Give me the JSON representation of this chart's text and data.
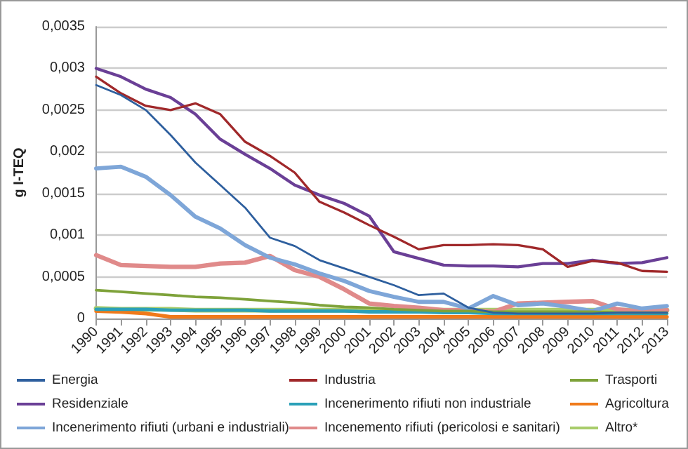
{
  "chart_data": {
    "type": "line",
    "ylabel": "g I-TEQ",
    "categories": [
      "1990",
      "1991",
      "1992",
      "1993",
      "1994",
      "1995",
      "1996",
      "1997",
      "1998",
      "1999",
      "2000",
      "2001",
      "2002",
      "2003",
      "2004",
      "2005",
      "2006",
      "2007",
      "2008",
      "2009",
      "2010",
      "2011",
      "2012",
      "2013"
    ],
    "series": [
      {
        "name": "Energia",
        "color": "#2e5f9e",
        "values": [
          0.0028,
          0.00268,
          0.0025,
          0.0022,
          0.00187,
          0.0016,
          0.00133,
          0.00097,
          0.00087,
          0.0007,
          0.0006,
          0.0005,
          0.0004,
          0.00028,
          0.0003,
          0.00013,
          7e-05,
          6e-05,
          6e-05,
          6e-05,
          6e-05,
          7e-05,
          7e-05,
          7e-05
        ]
      },
      {
        "name": "Industria",
        "color": "#a0282a",
        "values": [
          0.0029,
          0.0027,
          0.00255,
          0.0025,
          0.00258,
          0.00245,
          0.00212,
          0.00195,
          0.00175,
          0.0014,
          0.00127,
          0.00112,
          0.00098,
          0.00083,
          0.00088,
          0.00088,
          0.00089,
          0.00088,
          0.00083,
          0.00062,
          0.00069,
          0.00067,
          0.00057,
          0.00056
        ]
      },
      {
        "name": "Trasporti",
        "color": "#7ea23a",
        "values": [
          0.00034,
          0.00032,
          0.0003,
          0.00028,
          0.00026,
          0.00025,
          0.00023,
          0.00021,
          0.00019,
          0.00016,
          0.00014,
          0.00013,
          0.00011,
          0.0001,
          9e-05,
          9e-05,
          8e-05,
          8e-05,
          8e-05,
          8e-05,
          8e-05,
          7e-05,
          7e-05,
          7e-05
        ]
      },
      {
        "name": "Residenziale",
        "color": "#6a3f96",
        "values": [
          0.003,
          0.0029,
          0.00275,
          0.00265,
          0.00245,
          0.00215,
          0.00197,
          0.0018,
          0.0016,
          0.00148,
          0.00138,
          0.00123,
          0.0008,
          0.00072,
          0.00064,
          0.00063,
          0.00063,
          0.00062,
          0.00066,
          0.00066,
          0.0007,
          0.00066,
          0.00067,
          0.00073
        ]
      },
      {
        "name": "Incenerimento rifiuti non industriale",
        "color": "#2aa0b8",
        "values": [
          0.00011,
          0.00011,
          0.00011,
          0.0001,
          0.0001,
          0.0001,
          0.0001,
          9e-05,
          9e-05,
          9e-05,
          9e-05,
          8e-05,
          8e-05,
          8e-05,
          7e-05,
          7e-05,
          6e-05,
          6e-05,
          6e-05,
          6e-05,
          6e-05,
          6e-05,
          6e-05,
          6e-05
        ]
      },
      {
        "name": "Agricoltura",
        "color": "#f07a1a",
        "values": [
          9e-05,
          8e-05,
          6e-05,
          2e-05,
          2e-05,
          2e-05,
          2e-05,
          2e-05,
          2e-05,
          2e-05,
          2e-05,
          2e-05,
          2e-05,
          2e-05,
          2e-05,
          2e-05,
          2e-05,
          2e-05,
          2e-05,
          2e-05,
          2e-05,
          2e-05,
          2e-05,
          2e-05
        ]
      },
      {
        "name": "Incenerimento rifiuti (urbani e industriali)",
        "color": "#7ea6d8",
        "values": [
          0.0018,
          0.00182,
          0.0017,
          0.00148,
          0.00122,
          0.00108,
          0.00088,
          0.00073,
          0.00065,
          0.00054,
          0.00045,
          0.00033,
          0.00026,
          0.0002,
          0.0002,
          0.00012,
          0.00027,
          0.00016,
          0.00018,
          0.00014,
          9e-05,
          0.00018,
          0.00012,
          0.00015
        ]
      },
      {
        "name": "Incenemento rifiuti (pericolosi e sanitari)",
        "color": "#e08a8a",
        "values": [
          0.00076,
          0.00064,
          0.00063,
          0.00062,
          0.00062,
          0.00066,
          0.00067,
          0.00075,
          0.00058,
          0.0005,
          0.00035,
          0.00018,
          0.00015,
          0.00013,
          0.0001,
          0.0001,
          8e-05,
          0.00018,
          0.00019,
          0.0002,
          0.00021,
          0.00011,
          8e-05,
          0.0001
        ]
      },
      {
        "name": "Altro*",
        "color": "#a8cc6a",
        "values": [
          0.00012,
          0.00011,
          0.00011,
          0.00011,
          0.0001,
          0.0001,
          0.0001,
          0.0001,
          0.0001,
          0.0001,
          0.0001,
          0.0001,
          0.0001,
          0.0001,
          0.0001,
          0.0001,
          0.0001,
          0.0001,
          0.0001,
          0.0001,
          0.0001,
          0.0001,
          0.0001,
          0.0001
        ]
      }
    ],
    "ylim": [
      0,
      0.0035
    ],
    "yticks": [
      {
        "value": 0,
        "label": "0"
      },
      {
        "value": 0.0005,
        "label": "0,0005"
      },
      {
        "value": 0.001,
        "label": "0,001"
      },
      {
        "value": 0.0015,
        "label": "0,0015"
      },
      {
        "value": 0.002,
        "label": "0,002"
      },
      {
        "value": 0.0025,
        "label": "0,0025"
      },
      {
        "value": 0.003,
        "label": "0,003"
      },
      {
        "value": 0.0035,
        "label": "0,0035"
      }
    ],
    "grid": "y",
    "legend": "bottom",
    "marker": "none"
  }
}
